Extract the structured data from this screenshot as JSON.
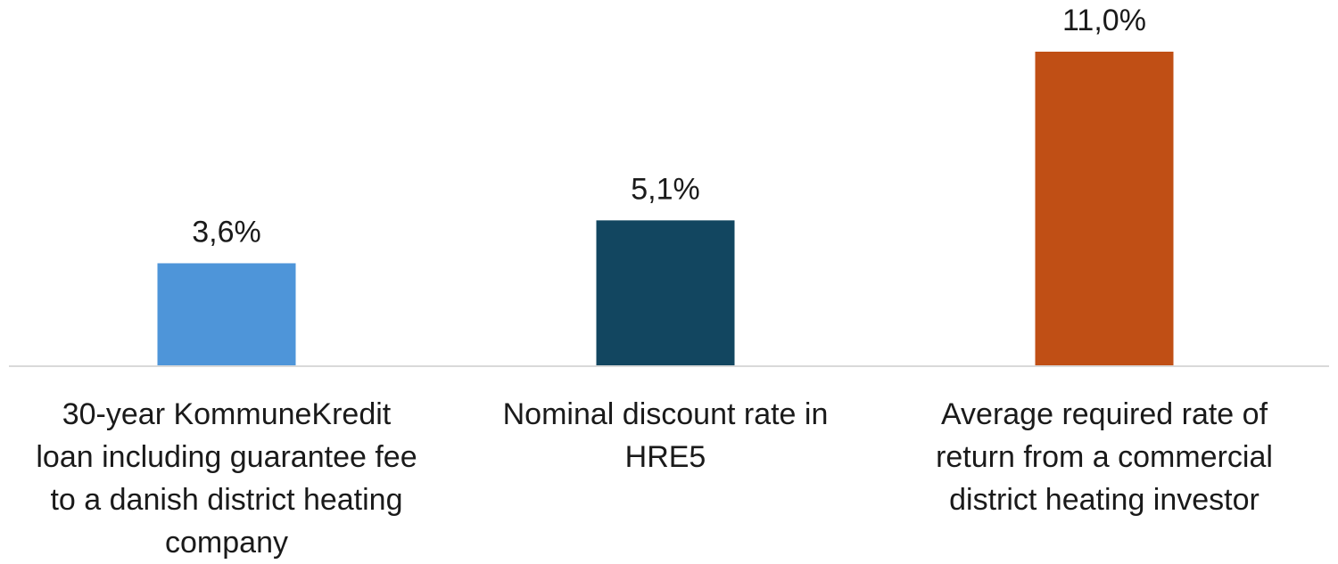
{
  "chart_data": {
    "type": "bar",
    "categories": [
      [
        "30-year KommuneKredit",
        "loan including guarantee fee",
        "to a danish district heating",
        "company"
      ],
      [
        "Nominal discount rate in",
        "HRE5"
      ],
      [
        "Average required rate of",
        "return from a commercial",
        "district heating investor"
      ]
    ],
    "values": [
      3.6,
      5.1,
      11.0
    ],
    "data_labels": [
      "3,6%",
      "5,1%",
      "11,0%"
    ],
    "colors": [
      "#4E95D9",
      "#124660",
      "#C04F15"
    ],
    "ylim": [
      0,
      11.0
    ],
    "grid": false,
    "legend": "none"
  }
}
